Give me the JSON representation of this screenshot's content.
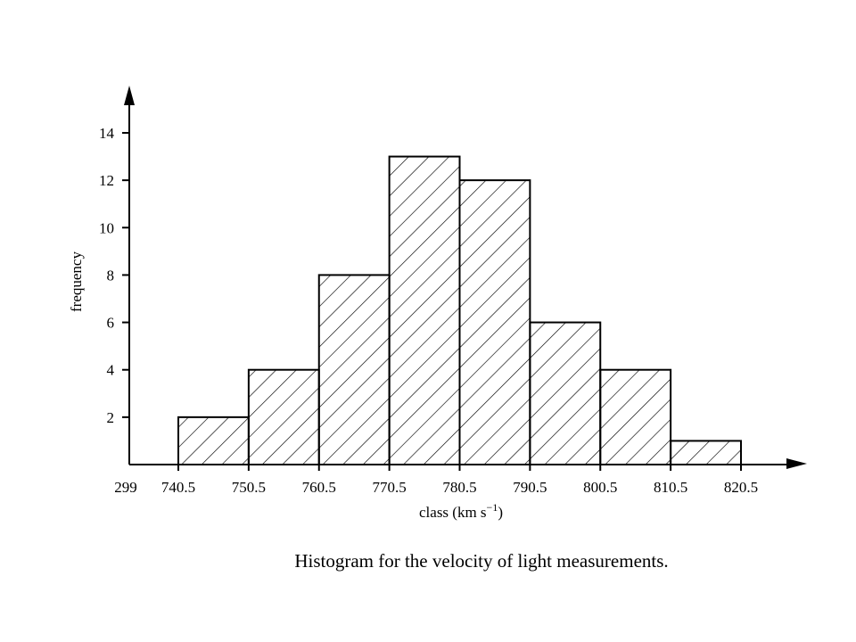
{
  "chart_data": {
    "type": "bar",
    "subtype": "histogram",
    "caption": "Histogram for the velocity of light measurements.",
    "xlabel": "class (km s",
    "xlabel_exponent": "−1",
    "xlabel_suffix": ")",
    "ylabel": "frequency",
    "x_axis_break_label": "299",
    "bin_edges": [
      740.5,
      750.5,
      760.5,
      770.5,
      780.5,
      790.5,
      800.5,
      810.5,
      820.5
    ],
    "bin_edge_labels": [
      "740.5",
      "750.5",
      "760.5",
      "770.5",
      "780.5",
      "790.5",
      "800.5",
      "810.5",
      "820.5"
    ],
    "frequencies": [
      2,
      4,
      8,
      13,
      12,
      6,
      4,
      1
    ],
    "y_ticks": [
      2,
      4,
      6,
      8,
      10,
      12,
      14
    ],
    "y_tick_labels": [
      "2",
      "4",
      "6",
      "8",
      "10",
      "12",
      "14"
    ],
    "ylim": [
      0,
      14
    ],
    "fill": "hatched",
    "grid": false,
    "legend": "none"
  }
}
